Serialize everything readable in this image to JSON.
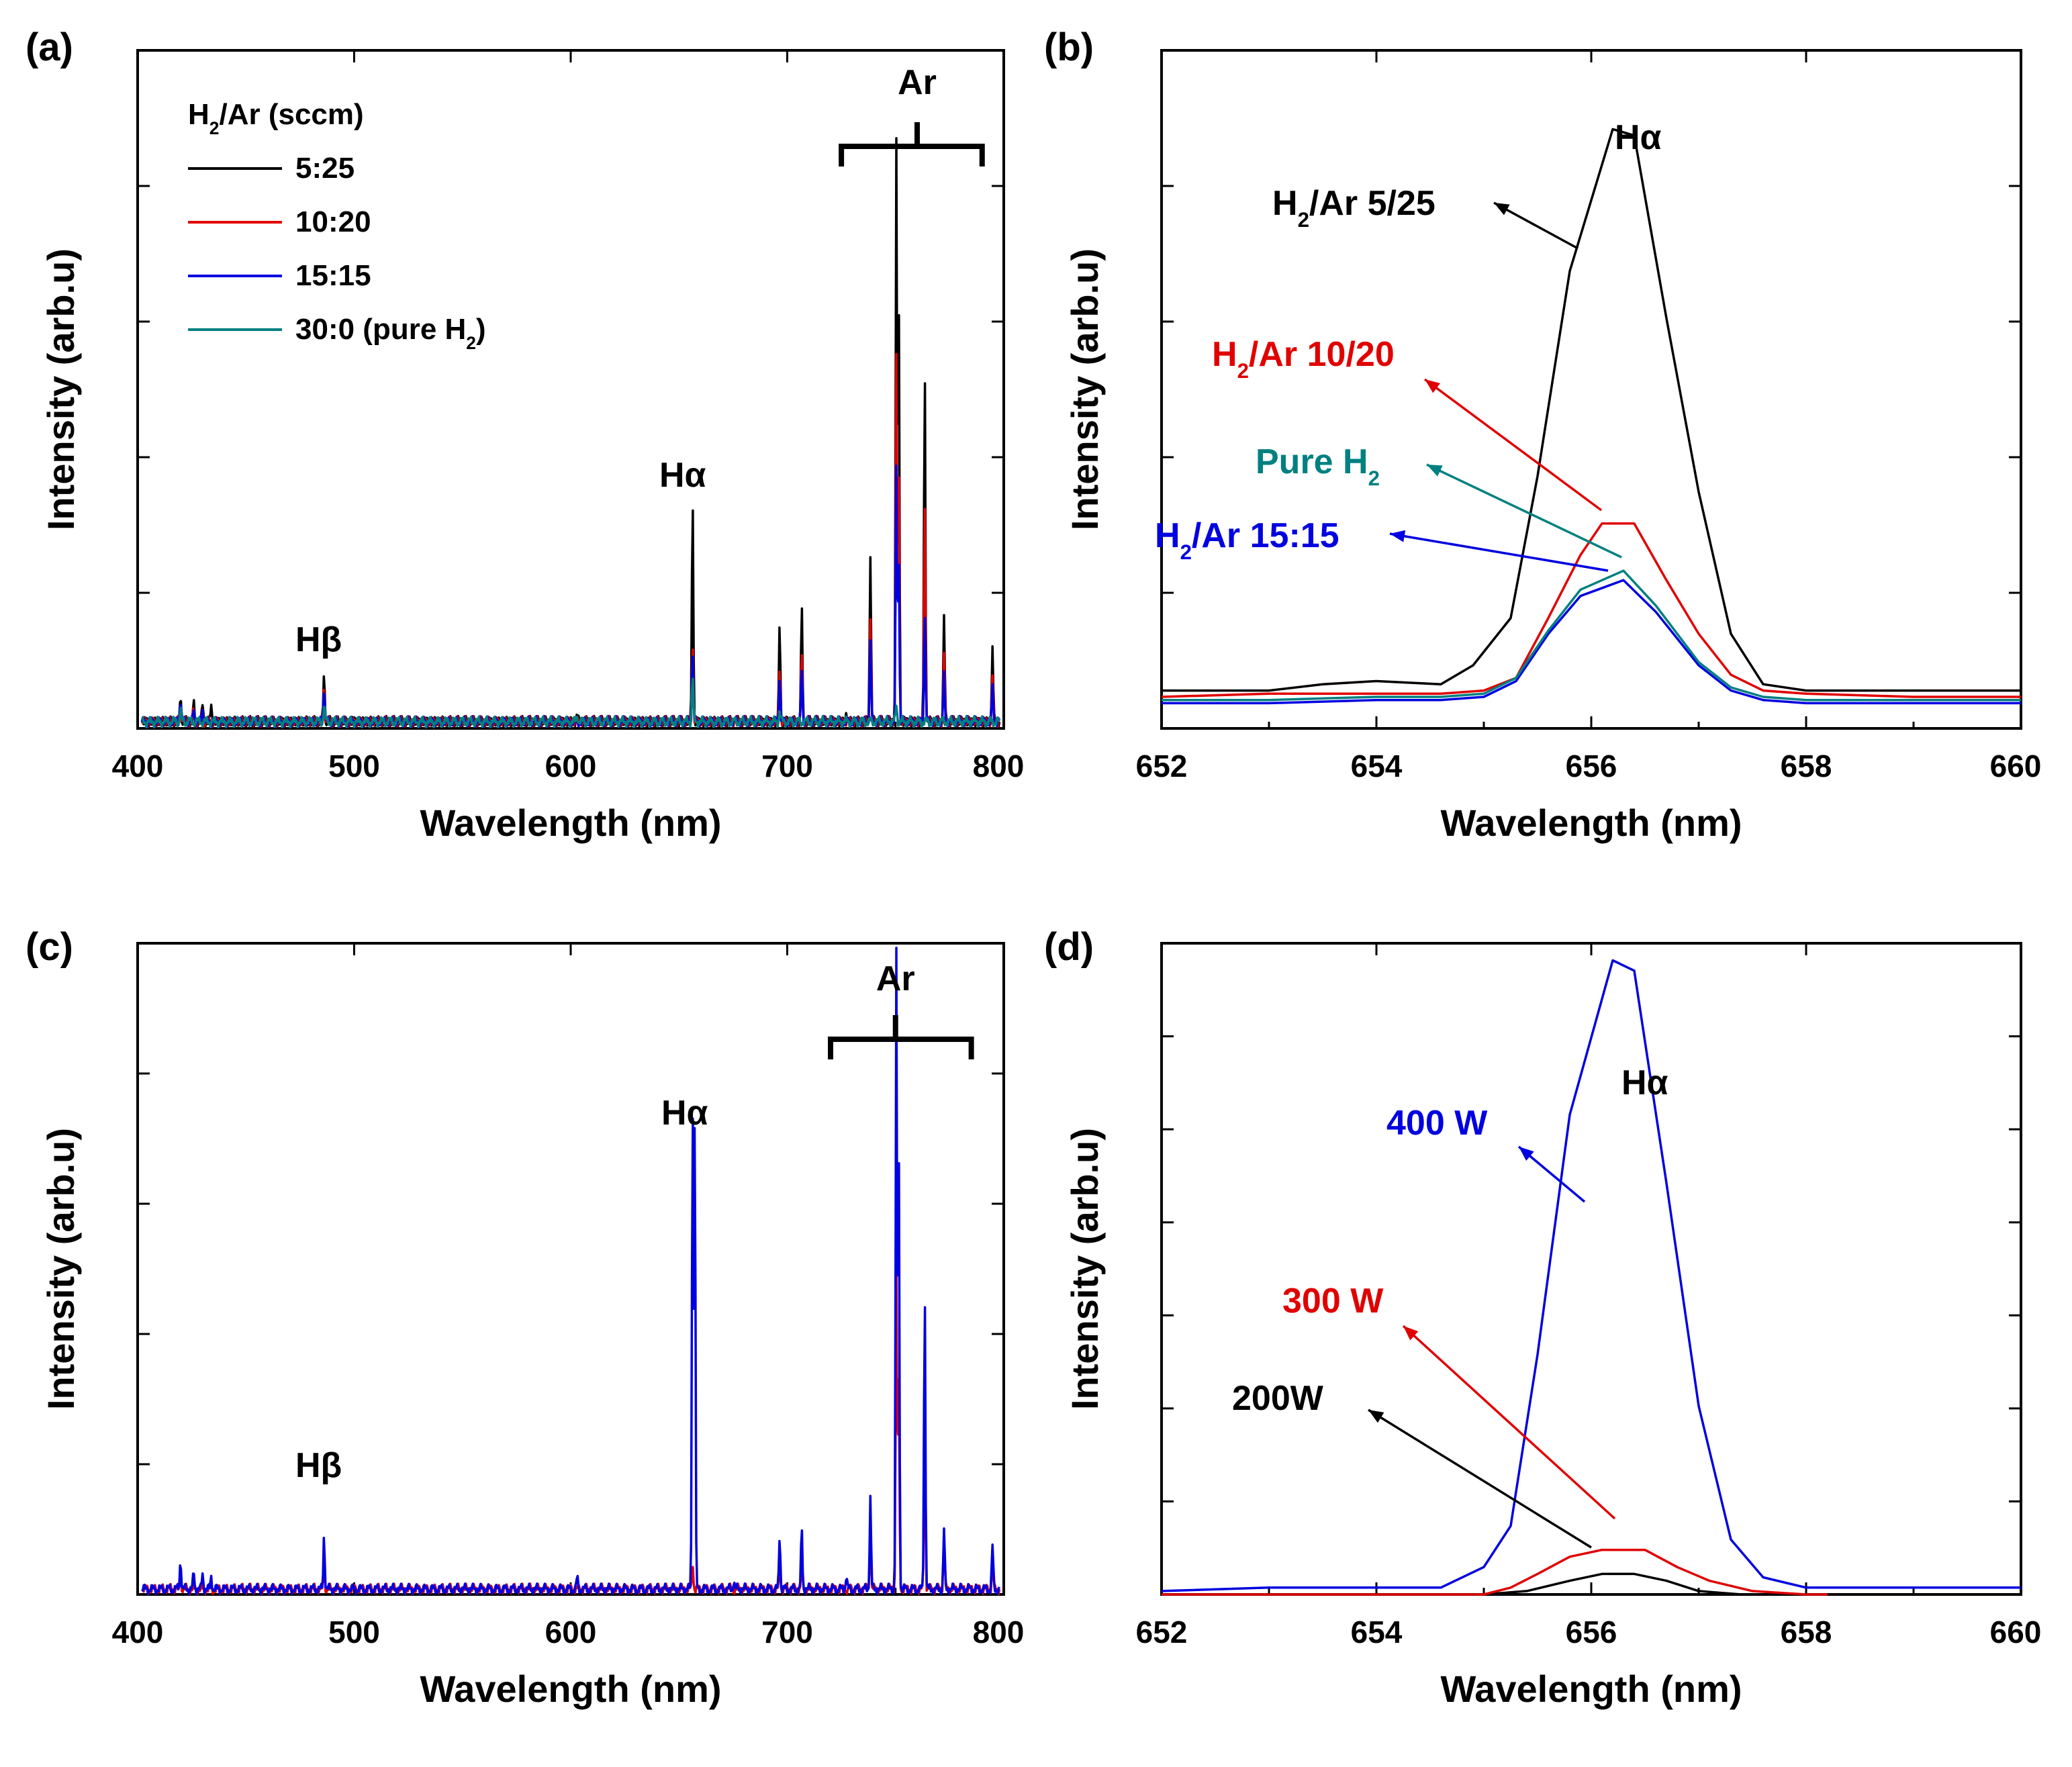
{
  "chart_data": [
    {
      "panel": "(a)",
      "type": "line",
      "xlabel": "Wavelength (nm)",
      "ylabel": "Intensity (arb.u)",
      "xlim": [
        400,
        800
      ],
      "ylim": [
        0,
        1.2
      ],
      "x_ticks": [
        400,
        500,
        600,
        700,
        800
      ],
      "y_ticks_count": 4,
      "legend": {
        "title": "H₂/Ar (sccm)",
        "placement": "top-left",
        "entries": [
          "5:25",
          "10:20",
          "15:15",
          "30:0 (pure H₂)"
        ]
      },
      "annotations": [
        {
          "text": "Hβ",
          "x": 485
        },
        {
          "text": "Hα",
          "x": 656
        },
        {
          "text": "Ar",
          "x": 760,
          "bracket": [
            725,
            790
          ]
        }
      ],
      "baseline": 0.012,
      "series": [
        {
          "name": "5:25",
          "color": "#000000",
          "peaks": [
            [
              419.8,
              0.045
            ],
            [
              425.9,
              0.03
            ],
            [
              430.0,
              0.028
            ],
            [
              434.0,
              0.025
            ],
            [
              486.1,
              0.085
            ],
            [
              603.0,
              0.01
            ],
            [
              656.3,
              0.4
            ],
            [
              675.3,
              0.012
            ],
            [
              696.5,
              0.17
            ],
            [
              706.7,
              0.2
            ],
            [
              727.3,
              0.02
            ],
            [
              738.4,
              0.3
            ],
            [
              750.4,
              1.03
            ],
            [
              751.5,
              0.75
            ],
            [
              763.5,
              0.63
            ],
            [
              772.4,
              0.19
            ],
            [
              794.8,
              0.13
            ]
          ]
        },
        {
          "name": "10:20",
          "color": "#e00000",
          "peaks": [
            [
              419.8,
              0.035
            ],
            [
              425.9,
              0.022
            ],
            [
              430.0,
              0.02
            ],
            [
              486.1,
              0.06
            ],
            [
              656.3,
              0.14
            ],
            [
              696.5,
              0.1
            ],
            [
              706.7,
              0.12
            ],
            [
              738.4,
              0.18
            ],
            [
              750.4,
              0.64
            ],
            [
              751.5,
              0.45
            ],
            [
              763.5,
              0.4
            ],
            [
              772.4,
              0.12
            ],
            [
              794.8,
              0.08
            ]
          ]
        },
        {
          "name": "15:15",
          "color": "#0000e0",
          "peaks": [
            [
              419.8,
              0.04
            ],
            [
              425.9,
              0.025
            ],
            [
              430.0,
              0.022
            ],
            [
              486.1,
              0.06
            ],
            [
              656.3,
              0.12
            ],
            [
              696.5,
              0.08
            ],
            [
              706.7,
              0.1
            ],
            [
              738.4,
              0.14
            ],
            [
              750.4,
              0.45
            ],
            [
              751.5,
              0.3
            ],
            [
              763.5,
              0.2
            ],
            [
              772.4,
              0.08
            ],
            [
              794.8,
              0.06
            ]
          ]
        },
        {
          "name": "30:0 (pure H₂)",
          "color": "#008080",
          "peaks": [
            [
              419.8,
              0.02
            ],
            [
              486.1,
              0.03
            ],
            [
              603.0,
              0.012
            ],
            [
              656.3,
              0.08
            ],
            [
              696.5,
              0.02
            ],
            [
              750.4,
              0.03
            ]
          ]
        }
      ]
    },
    {
      "panel": "(b)",
      "type": "line",
      "xlabel": "Wavelength (nm)",
      "ylabel": "Intensity (arb.u)",
      "xlim": [
        652,
        660
      ],
      "ylim": [
        0,
        2.15
      ],
      "x_ticks": [
        652,
        654,
        656,
        658,
        660
      ],
      "y_ticks_count": 4,
      "title_annotation": "Hα",
      "series": [
        {
          "name": "H₂/Ar 5/25",
          "color": "#000000",
          "x": [
            652,
            653,
            653.5,
            654,
            654.6,
            654.9,
            655.25,
            655.5,
            655.8,
            656.2,
            656.4,
            656.7,
            657.0,
            657.3,
            657.6,
            658,
            659,
            660
          ],
          "y": [
            0.12,
            0.12,
            0.14,
            0.15,
            0.14,
            0.2,
            0.35,
            0.8,
            1.45,
            1.9,
            1.88,
            1.3,
            0.75,
            0.3,
            0.14,
            0.12,
            0.12,
            0.12
          ]
        },
        {
          "name": "H₂/Ar 10/20",
          "color": "#e00000",
          "x": [
            652,
            653,
            654,
            654.6,
            655.0,
            655.3,
            655.6,
            655.9,
            656.1,
            656.4,
            656.7,
            657.0,
            657.3,
            657.6,
            658,
            659,
            660
          ],
          "y": [
            0.1,
            0.11,
            0.11,
            0.11,
            0.12,
            0.16,
            0.35,
            0.55,
            0.65,
            0.65,
            0.47,
            0.3,
            0.17,
            0.12,
            0.11,
            0.1,
            0.1
          ]
        },
        {
          "name": "H₂/Ar 15:15",
          "color": "#0000e0",
          "x": [
            652,
            653,
            654,
            654.6,
            655.0,
            655.3,
            655.6,
            655.9,
            656.3,
            656.6,
            657.0,
            657.3,
            657.6,
            658,
            659,
            660
          ],
          "y": [
            0.08,
            0.08,
            0.09,
            0.09,
            0.1,
            0.15,
            0.3,
            0.42,
            0.47,
            0.37,
            0.2,
            0.12,
            0.09,
            0.08,
            0.08,
            0.08
          ]
        },
        {
          "name": "Pure H₂",
          "color": "#008080",
          "x": [
            652,
            653,
            654,
            654.6,
            655.0,
            655.3,
            655.6,
            655.9,
            656.3,
            656.6,
            657.0,
            657.3,
            657.6,
            658,
            659,
            660
          ],
          "y": [
            0.09,
            0.09,
            0.1,
            0.1,
            0.11,
            0.16,
            0.31,
            0.44,
            0.5,
            0.39,
            0.21,
            0.13,
            0.1,
            0.09,
            0.09,
            0.09
          ]
        }
      ],
      "labels": [
        {
          "text": "H₂/Ar 5/25",
          "color": "#000000"
        },
        {
          "text": "H₂/Ar 10/20",
          "color": "#e00000"
        },
        {
          "text": "Pure H₂",
          "color": "#008080"
        },
        {
          "text": "H₂/Ar 15:15",
          "color": "#0000e0"
        }
      ]
    },
    {
      "panel": "(c)",
      "type": "line",
      "xlabel": "Wavelength (nm)",
      "ylabel": "Intensity (arb.u)",
      "xlim": [
        400,
        800
      ],
      "ylim": [
        0,
        1.2
      ],
      "x_ticks": [
        400,
        500,
        600,
        700,
        800
      ],
      "y_ticks_count": 4,
      "annotations": [
        {
          "text": "Hβ",
          "x": 485
        },
        {
          "text": "Hα",
          "x": 656
        },
        {
          "text": "Ar",
          "x": 750,
          "bracket": [
            720,
            785
          ]
        }
      ],
      "baseline": 0.01,
      "series": [
        {
          "name": "300 W",
          "color": "#e00000",
          "peaks": [
            [
              419.8,
              0.03
            ],
            [
              486.1,
              0.04
            ],
            [
              656.3,
              0.05
            ],
            [
              696.5,
              0.04
            ],
            [
              706.7,
              0.05
            ],
            [
              738.4,
              0.1
            ],
            [
              750.4,
              0.6
            ],
            [
              751.5,
              0.4
            ],
            [
              763.5,
              0.35
            ],
            [
              772.4,
              0.1
            ],
            [
              794.8,
              0.05
            ]
          ]
        },
        {
          "name": "400 W",
          "color": "#0000e0",
          "peaks": [
            [
              419.8,
              0.055
            ],
            [
              425.9,
              0.03
            ],
            [
              430.0,
              0.028
            ],
            [
              434.0,
              0.025
            ],
            [
              486.1,
              0.1
            ],
            [
              603.0,
              0.02
            ],
            [
              656.3,
              0.9
            ],
            [
              657.3,
              0.88
            ],
            [
              675.3,
              0.015
            ],
            [
              696.5,
              0.1
            ],
            [
              706.7,
              0.11
            ],
            [
              727.3,
              0.025
            ],
            [
              738.4,
              0.17
            ],
            [
              750.4,
              1.17
            ],
            [
              751.5,
              0.82
            ],
            [
              763.5,
              0.55
            ],
            [
              772.4,
              0.11
            ],
            [
              794.8,
              0.08
            ]
          ]
        }
      ]
    },
    {
      "panel": "(d)",
      "type": "line",
      "xlabel": "Wavelength (nm)",
      "ylabel": "Intensity (arb.u)",
      "xlim": [
        652,
        660
      ],
      "ylim": [
        0,
        1.9
      ],
      "x_ticks": [
        652,
        654,
        656,
        658,
        660
      ],
      "y_ticks_count": 6,
      "title_annotation": "Hα",
      "series": [
        {
          "name": "200W",
          "color": "#000000",
          "x": [
            652,
            653,
            654,
            654.5,
            655.0,
            655.4,
            655.8,
            656.1,
            656.4,
            656.7,
            657.0,
            657.4,
            657.8,
            658.2
          ],
          "y": [
            0.0,
            0.0,
            0.0,
            0.0,
            0.0,
            0.01,
            0.04,
            0.06,
            0.06,
            0.04,
            0.01,
            0.0,
            0.0,
            0.0
          ]
        },
        {
          "name": "300 W",
          "color": "#e00000",
          "x": [
            652,
            653,
            654,
            654.5,
            655.0,
            655.25,
            655.5,
            655.8,
            656.1,
            656.5,
            656.8,
            657.1,
            657.5,
            658.0,
            658.2
          ],
          "y": [
            0.0,
            0.0,
            0.0,
            0.0,
            0.0,
            0.02,
            0.06,
            0.11,
            0.13,
            0.13,
            0.08,
            0.04,
            0.01,
            0.0,
            0.0
          ]
        },
        {
          "name": "400 W",
          "color": "#0000e0",
          "x": [
            652,
            653,
            654,
            654.6,
            655.0,
            655.25,
            655.5,
            655.8,
            656.2,
            656.4,
            656.7,
            657.0,
            657.3,
            657.6,
            658,
            659,
            660
          ],
          "y": [
            0.01,
            0.02,
            0.02,
            0.02,
            0.08,
            0.2,
            0.7,
            1.4,
            1.85,
            1.82,
            1.2,
            0.55,
            0.16,
            0.05,
            0.02,
            0.02,
            0.02
          ]
        }
      ],
      "labels": [
        {
          "text": "400 W",
          "color": "#0000e0"
        },
        {
          "text": "300 W",
          "color": "#e00000"
        },
        {
          "text": "200W",
          "color": "#000000"
        }
      ]
    }
  ]
}
